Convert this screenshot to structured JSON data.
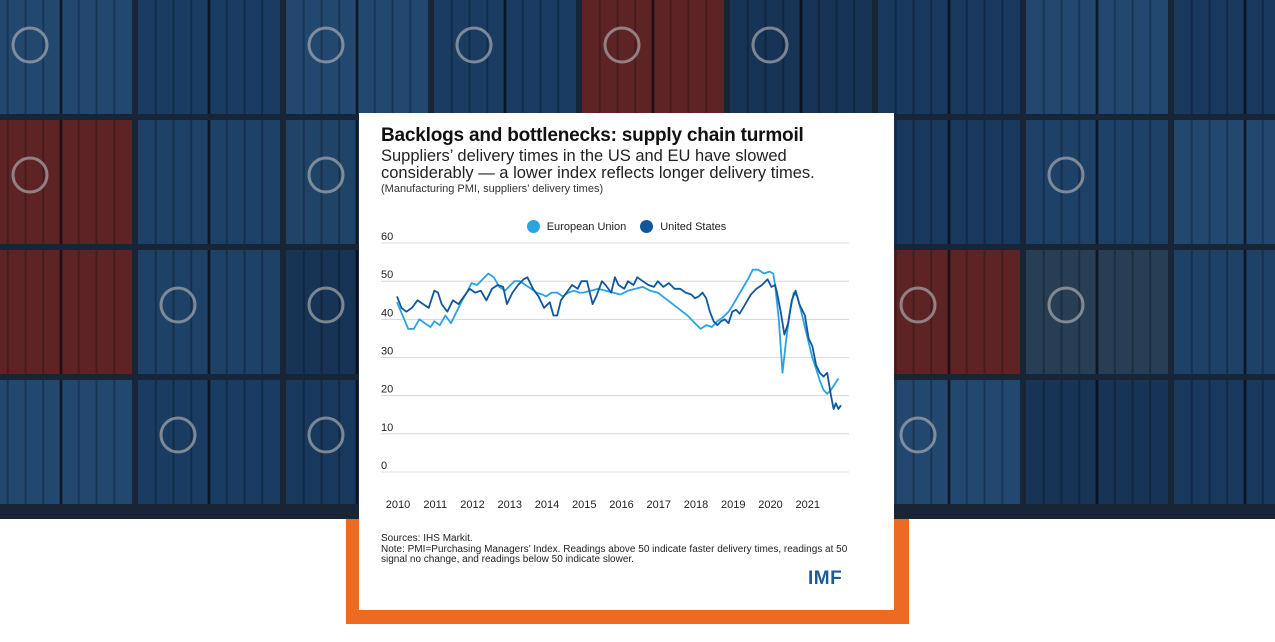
{
  "header": {
    "title": "Backlogs and bottlenecks: supply chain turmoil",
    "subtitle": "Suppliers’ delivery times in the US and EU have slowed considerably — a lower index reflects longer delivery times.",
    "note": "(Manufacturing PMI, suppliers’ delivery times)"
  },
  "footer": {
    "sources": "Sources: IHS Markit.",
    "note": "Note: PMI=Purchasing Managers’ Index. Readings above 50 indicate faster delivery times, readings at 50 signal no change, and readings below 50 indicate slower.",
    "logo": "IMF"
  },
  "colors": {
    "eu": "#2aa3e0",
    "us": "#11579e",
    "frame": "#ec6a22",
    "logo": "#1a5d97",
    "grid": "#d0d0d0"
  },
  "chart_data": {
    "type": "line",
    "title": "",
    "xlabel": "",
    "ylabel": "",
    "ylim": [
      0,
      60
    ],
    "xlim": [
      2010,
      2022
    ],
    "yticks": [
      0,
      10,
      20,
      30,
      40,
      50,
      60
    ],
    "xticks": [
      2010,
      2011,
      2012,
      2013,
      2014,
      2015,
      2016,
      2017,
      2018,
      2019,
      2020,
      2021
    ],
    "grid": "horizontal",
    "legend_position": "top-center",
    "series": [
      {
        "name": "European Union",
        "points": [
          [
            2010.0,
            44.5
          ],
          [
            2010.15,
            41
          ],
          [
            2010.3,
            37.5
          ],
          [
            2010.45,
            37.5
          ],
          [
            2010.6,
            40
          ],
          [
            2010.75,
            39
          ],
          [
            2010.9,
            38
          ],
          [
            2011.0,
            39.5
          ],
          [
            2011.15,
            38.5
          ],
          [
            2011.3,
            41
          ],
          [
            2011.45,
            39
          ],
          [
            2011.6,
            42
          ],
          [
            2011.75,
            45
          ],
          [
            2011.9,
            47.5
          ],
          [
            2012.0,
            49.5
          ],
          [
            2012.15,
            49
          ],
          [
            2012.3,
            50.5
          ],
          [
            2012.45,
            52
          ],
          [
            2012.6,
            51
          ],
          [
            2012.75,
            48.5
          ],
          [
            2012.9,
            47.5
          ],
          [
            2013.0,
            48.5
          ],
          [
            2013.15,
            50
          ],
          [
            2013.3,
            50
          ],
          [
            2013.45,
            49
          ],
          [
            2013.6,
            48
          ],
          [
            2013.75,
            47
          ],
          [
            2013.9,
            46.5
          ],
          [
            2014.0,
            46
          ],
          [
            2014.15,
            47
          ],
          [
            2014.3,
            47
          ],
          [
            2014.45,
            46
          ],
          [
            2014.6,
            47
          ],
          [
            2014.75,
            47.5
          ],
          [
            2014.9,
            47
          ],
          [
            2015.0,
            47
          ],
          [
            2015.2,
            47.5
          ],
          [
            2015.4,
            48
          ],
          [
            2015.6,
            47.5
          ],
          [
            2015.8,
            47
          ],
          [
            2016.0,
            46.5
          ],
          [
            2016.2,
            47.5
          ],
          [
            2016.4,
            48
          ],
          [
            2016.6,
            48.5
          ],
          [
            2016.8,
            47.5
          ],
          [
            2017.0,
            47
          ],
          [
            2017.2,
            45.5
          ],
          [
            2017.4,
            44
          ],
          [
            2017.6,
            42.5
          ],
          [
            2017.8,
            41
          ],
          [
            2018.0,
            39
          ],
          [
            2018.15,
            37.5
          ],
          [
            2018.3,
            38.5
          ],
          [
            2018.45,
            38
          ],
          [
            2018.6,
            39.5
          ],
          [
            2018.75,
            40.5
          ],
          [
            2018.9,
            42
          ],
          [
            2019.0,
            43.5
          ],
          [
            2019.15,
            46
          ],
          [
            2019.3,
            48.5
          ],
          [
            2019.45,
            51
          ],
          [
            2019.55,
            53
          ],
          [
            2019.7,
            53
          ],
          [
            2019.85,
            52
          ],
          [
            2020.0,
            52.5
          ],
          [
            2020.1,
            52
          ],
          [
            2020.15,
            49
          ],
          [
            2020.25,
            40
          ],
          [
            2020.35,
            26
          ],
          [
            2020.45,
            35
          ],
          [
            2020.55,
            42
          ],
          [
            2020.65,
            47
          ],
          [
            2020.75,
            46
          ],
          [
            2020.85,
            42
          ],
          [
            2020.95,
            38
          ],
          [
            2021.05,
            34
          ],
          [
            2021.15,
            30
          ],
          [
            2021.25,
            27
          ],
          [
            2021.35,
            24
          ],
          [
            2021.45,
            21.5
          ],
          [
            2021.55,
            20.5
          ],
          [
            2021.65,
            21.5
          ],
          [
            2021.75,
            23
          ],
          [
            2021.85,
            24.5
          ]
        ]
      },
      {
        "name": "United States",
        "points": [
          [
            2010.0,
            46
          ],
          [
            2010.12,
            43
          ],
          [
            2010.25,
            42
          ],
          [
            2010.4,
            43
          ],
          [
            2010.55,
            45
          ],
          [
            2010.7,
            44
          ],
          [
            2010.85,
            43
          ],
          [
            2011.0,
            47.5
          ],
          [
            2011.1,
            47
          ],
          [
            2011.2,
            44
          ],
          [
            2011.35,
            42
          ],
          [
            2011.5,
            45
          ],
          [
            2011.65,
            44
          ],
          [
            2011.8,
            46
          ],
          [
            2011.95,
            48
          ],
          [
            2012.1,
            47
          ],
          [
            2012.25,
            47.5
          ],
          [
            2012.4,
            45
          ],
          [
            2012.55,
            48
          ],
          [
            2012.7,
            49
          ],
          [
            2012.85,
            48.5
          ],
          [
            2012.95,
            44
          ],
          [
            2013.1,
            47
          ],
          [
            2013.25,
            49
          ],
          [
            2013.4,
            50.5
          ],
          [
            2013.5,
            51
          ],
          [
            2013.65,
            48
          ],
          [
            2013.8,
            46
          ],
          [
            2013.95,
            43
          ],
          [
            2014.1,
            44.5
          ],
          [
            2014.2,
            41
          ],
          [
            2014.3,
            41
          ],
          [
            2014.4,
            45
          ],
          [
            2014.55,
            47
          ],
          [
            2014.7,
            49
          ],
          [
            2014.85,
            48
          ],
          [
            2014.95,
            50
          ],
          [
            2015.1,
            50
          ],
          [
            2015.25,
            44
          ],
          [
            2015.35,
            46
          ],
          [
            2015.5,
            50
          ],
          [
            2015.6,
            49
          ],
          [
            2015.75,
            47
          ],
          [
            2015.85,
            51
          ],
          [
            2015.95,
            49
          ],
          [
            2016.1,
            48
          ],
          [
            2016.2,
            50
          ],
          [
            2016.35,
            49
          ],
          [
            2016.45,
            51
          ],
          [
            2016.6,
            50
          ],
          [
            2016.75,
            49
          ],
          [
            2016.9,
            48.5
          ],
          [
            2017.0,
            50
          ],
          [
            2017.15,
            48.5
          ],
          [
            2017.3,
            49.5
          ],
          [
            2017.45,
            48
          ],
          [
            2017.6,
            48
          ],
          [
            2017.75,
            47
          ],
          [
            2017.9,
            46.5
          ],
          [
            2018.0,
            45.5
          ],
          [
            2018.1,
            46
          ],
          [
            2018.2,
            47
          ],
          [
            2018.3,
            45.5
          ],
          [
            2018.4,
            42
          ],
          [
            2018.5,
            39.5
          ],
          [
            2018.6,
            38.5
          ],
          [
            2018.7,
            39.5
          ],
          [
            2018.8,
            40
          ],
          [
            2018.9,
            39
          ],
          [
            2019.0,
            42
          ],
          [
            2019.1,
            42.5
          ],
          [
            2019.2,
            41.5
          ],
          [
            2019.35,
            44
          ],
          [
            2019.5,
            46.5
          ],
          [
            2019.65,
            48
          ],
          [
            2019.8,
            49
          ],
          [
            2019.95,
            50.5
          ],
          [
            2020.05,
            48.5
          ],
          [
            2020.15,
            49
          ],
          [
            2020.2,
            47
          ],
          [
            2020.3,
            42
          ],
          [
            2020.4,
            36
          ],
          [
            2020.5,
            39
          ],
          [
            2020.6,
            45
          ],
          [
            2020.7,
            47.5
          ],
          [
            2020.8,
            44
          ],
          [
            2020.95,
            41
          ],
          [
            2021.05,
            35
          ],
          [
            2021.15,
            33
          ],
          [
            2021.25,
            28
          ],
          [
            2021.35,
            26
          ],
          [
            2021.45,
            25
          ],
          [
            2021.55,
            26
          ],
          [
            2021.65,
            20
          ],
          [
            2021.72,
            16.5
          ],
          [
            2021.78,
            18
          ],
          [
            2021.85,
            16.5
          ],
          [
            2021.92,
            17.5
          ]
        ]
      }
    ]
  }
}
